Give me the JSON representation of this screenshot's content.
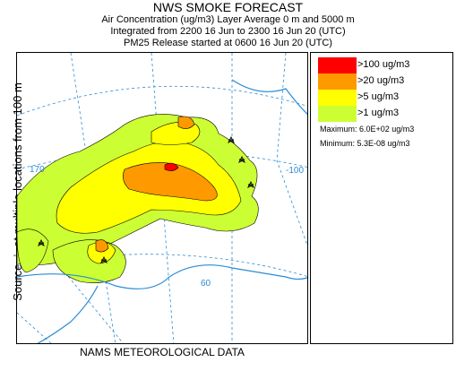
{
  "header": {
    "title": "NWS SMOKE FORECAST",
    "line2": "Air Concentration (ug/m3) Layer Average    0 m and  5000 m",
    "line3": "Integrated from 2200 16 Jun to 2300 16 Jun 20 (UTC)",
    "line4": "PM25 Release started at 0600 16 Jun 20 (UTC)"
  },
  "side_label": "Source ☆ at multiple locations   from   100 m",
  "bottom_label": "NAMS METEOROLOGICAL DATA",
  "map": {
    "grid_labels": [
      "170",
      "-100",
      "60"
    ]
  },
  "legend": {
    "items": [
      {
        "label": ">100 ug/m3",
        "color": "#ff0000"
      },
      {
        "label": ">20 ug/m3",
        "color": "#ff9900"
      },
      {
        "label": ">5 ug/m3",
        "color": "#ffff00"
      },
      {
        "label": ">1 ug/m3",
        "color": "#ccff33"
      }
    ],
    "maximum": "Maximum: 6.0E+02 ug/m3",
    "minimum": "Minimum: 5.3E-08 ug/m3"
  },
  "colors": {
    "coastline": "#2a8cd6",
    "gridlines": "#2a8cd6",
    "contour_outline": "#000000"
  }
}
